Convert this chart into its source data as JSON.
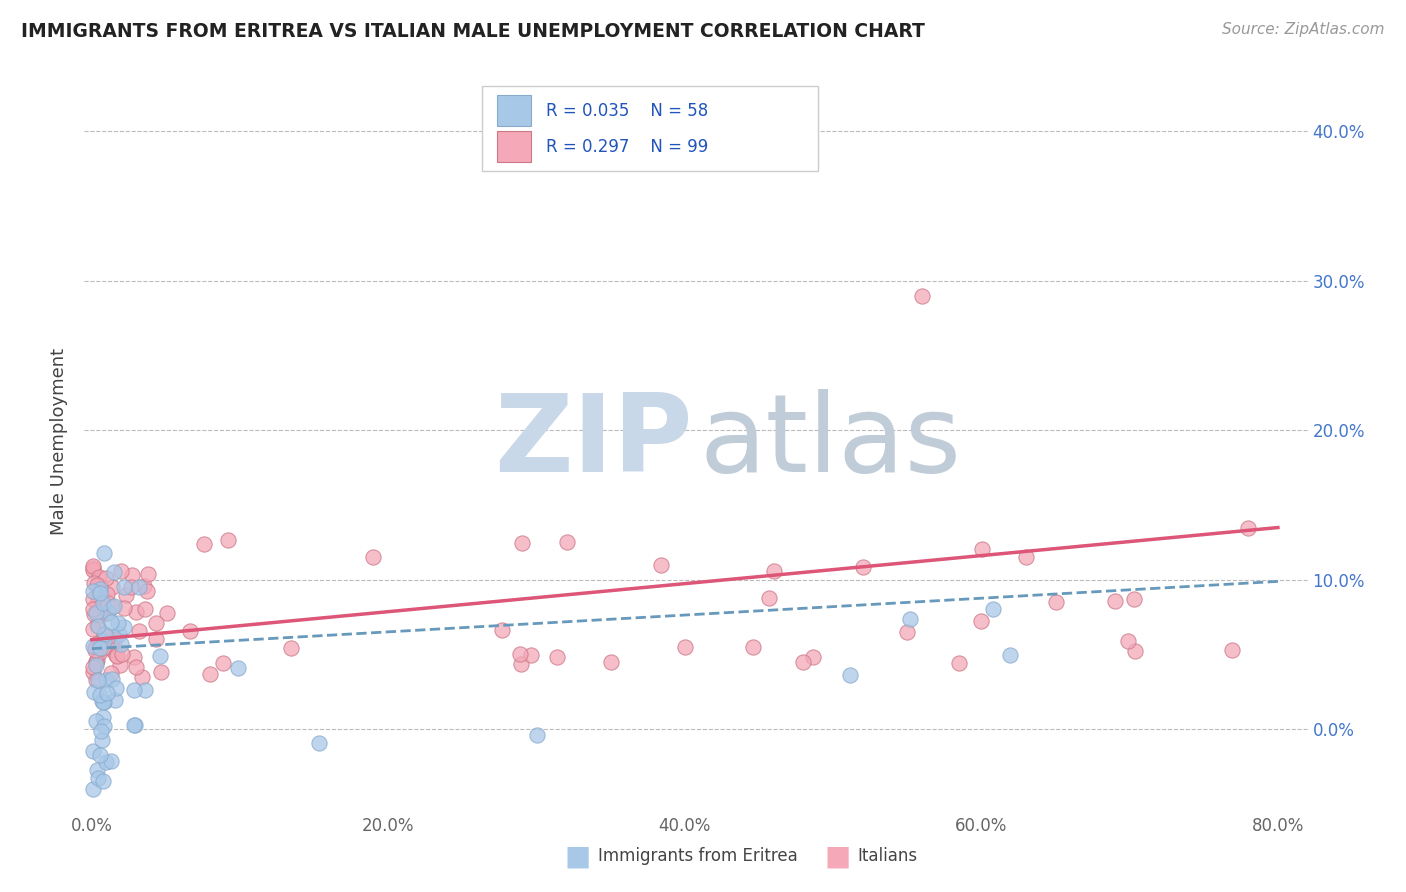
{
  "title": "IMMIGRANTS FROM ERITREA VS ITALIAN MALE UNEMPLOYMENT CORRELATION CHART",
  "source": "Source: ZipAtlas.com",
  "ylabel_label": "Male Unemployment",
  "legend_r_eritrea": "R = 0.035",
  "legend_n_eritrea": "N = 58",
  "legend_r_italians": "R = 0.297",
  "legend_n_italians": "N = 99",
  "color_eritrea": "#a8c8e8",
  "color_eritrea_edge": "#88aacc",
  "color_italians": "#f4a8b8",
  "color_italians_edge": "#cc7788",
  "color_eritrea_line": "#6699bb",
  "color_italians_line": "#dd5577",
  "background_color": "#ffffff",
  "watermark_zip_color": "#c8d8e8",
  "watermark_atlas_color": "#c0ccd8",
  "right_tick_color": "#4477cc",
  "xlim": [
    -0.005,
    0.82
  ],
  "ylim": [
    -0.055,
    0.44
  ],
  "xticks": [
    0.0,
    0.2,
    0.4,
    0.6,
    0.8
  ],
  "yticks": [
    0.0,
    0.1,
    0.2,
    0.3,
    0.4
  ]
}
